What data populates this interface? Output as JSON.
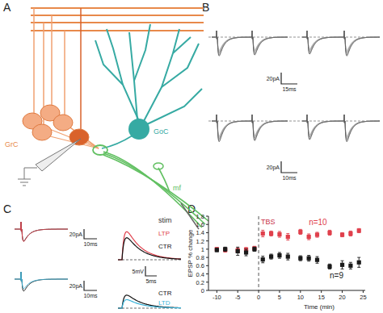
{
  "figure": {
    "panel_labels": [
      "A",
      "B",
      "C",
      "D"
    ],
    "panel_a": {
      "granule_cell": "GrC",
      "golgi_cell": "GoC",
      "mossy_fiber": "mf",
      "stimulation": "stim"
    },
    "panel_b": {
      "top_scale": {
        "current": "20pA",
        "time": "15ms"
      },
      "bottom_scale": {
        "current": "20pA",
        "time": "10ms"
      }
    },
    "panel_c": {
      "ltp_epsc_scale": {
        "current": "20pA",
        "time": "10ms"
      },
      "epsp_scale": {
        "voltage": "5mV",
        "time": "5ms"
      },
      "ltd_epsc_scale": {
        "current": "20pA",
        "time": "10ms"
      },
      "ltp_labels": [
        "LTP",
        "CTR"
      ],
      "ltd_labels": [
        "CTR",
        "LTD"
      ]
    }
  },
  "chart_data": {
    "type": "scatter",
    "x_label": "Time (min)",
    "y_label": "EPSP % change",
    "x": [
      -10,
      -8,
      -5,
      -3,
      -1,
      1,
      3,
      5,
      7,
      10,
      12,
      14,
      17,
      20,
      22,
      24
    ],
    "series": [
      {
        "name": "n=10",
        "color": "#e0404c",
        "marker": "square",
        "values": [
          1.0,
          0.98,
          0.97,
          0.99,
          1.02,
          1.38,
          1.38,
          1.36,
          1.3,
          1.42,
          1.3,
          1.35,
          1.4,
          1.35,
          1.38,
          1.45
        ],
        "errors": [
          0.04,
          0.05,
          0.06,
          0.05,
          0.05,
          0.08,
          0.06,
          0.07,
          0.08,
          0.06,
          0.07,
          0.06,
          0.06,
          0.05,
          0.06,
          0.05
        ]
      },
      {
        "name": "n=9",
        "color": "#1a1a1a",
        "marker": "square",
        "values": [
          0.98,
          1.0,
          0.95,
          0.92,
          1.0,
          0.75,
          0.82,
          0.85,
          0.82,
          0.78,
          0.78,
          0.74,
          0.58,
          0.62,
          0.6,
          0.68
        ],
        "errors": [
          0.04,
          0.05,
          0.1,
          0.08,
          0.05,
          0.08,
          0.06,
          0.07,
          0.08,
          0.06,
          0.07,
          0.08,
          0.06,
          0.1,
          0.08,
          0.12
        ]
      }
    ],
    "annotations": [
      {
        "text": "TBS",
        "x": 0
      }
    ],
    "xlim": [
      -12,
      25.5
    ],
    "xticks": [
      -10,
      -5,
      0,
      5,
      10,
      15,
      20,
      25
    ],
    "ylim": [
      0,
      1.8
    ],
    "yticks": [
      0,
      0.2,
      0.4,
      0.6,
      0.8,
      1,
      1.2,
      1.4,
      1.6,
      1.8
    ],
    "grid": false
  }
}
